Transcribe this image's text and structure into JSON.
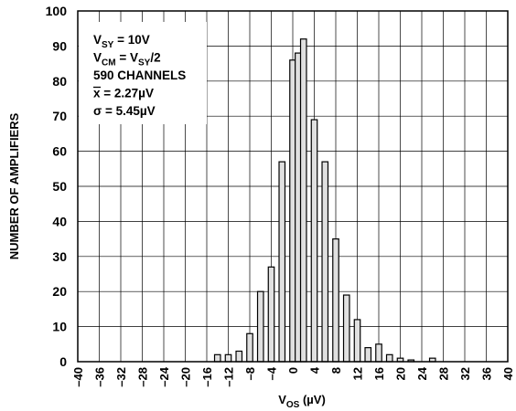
{
  "chart_data": {
    "type": "bar",
    "title": "",
    "xlabel": "V",
    "xlabel_sub": "OS",
    "xlabel_unit": " (µV)",
    "ylabel": "NUMBER OF AMPLIFIERS",
    "xlim": [
      -40,
      40
    ],
    "ylim": [
      0,
      100
    ],
    "x_ticks": [
      -40,
      -36,
      -32,
      -28,
      -24,
      -20,
      -16,
      -12,
      -8,
      -4,
      0,
      4,
      8,
      12,
      16,
      20,
      24,
      28,
      32,
      36,
      40
    ],
    "x_tick_labels": [
      "–40",
      "–36",
      "–32",
      "–28",
      "–24",
      "–20",
      "–16",
      "–12",
      "–8",
      "–4",
      "0",
      "4",
      "8",
      "12",
      "16",
      "20",
      "24",
      "28",
      "32",
      "36",
      "40"
    ],
    "y_ticks": [
      0,
      10,
      20,
      30,
      40,
      50,
      60,
      70,
      80,
      90,
      100
    ],
    "grid": true,
    "bin_width": 1,
    "x": [
      -14,
      -12,
      -10,
      -8,
      -6,
      -4,
      -2,
      0,
      1,
      2,
      4,
      6,
      8,
      10,
      12,
      14,
      16,
      18,
      20,
      22,
      26
    ],
    "values": [
      2,
      2,
      3,
      8,
      20,
      27,
      57,
      86,
      88,
      92,
      69,
      57,
      35,
      19,
      12,
      4,
      5,
      2,
      1,
      0.5,
      1
    ],
    "annotation": [
      {
        "main": "V",
        "sub": "SY",
        "rest": " = 10V"
      },
      {
        "main": "V",
        "sub": "CM",
        "rest": " = V",
        "sub2": "SY",
        "rest2": "/2"
      },
      {
        "main": "590 CHANNELS"
      },
      {
        "main": "x",
        "overline": true,
        "rest": " = 2.27µV"
      },
      {
        "main": "σ = 5.45µV"
      }
    ]
  }
}
